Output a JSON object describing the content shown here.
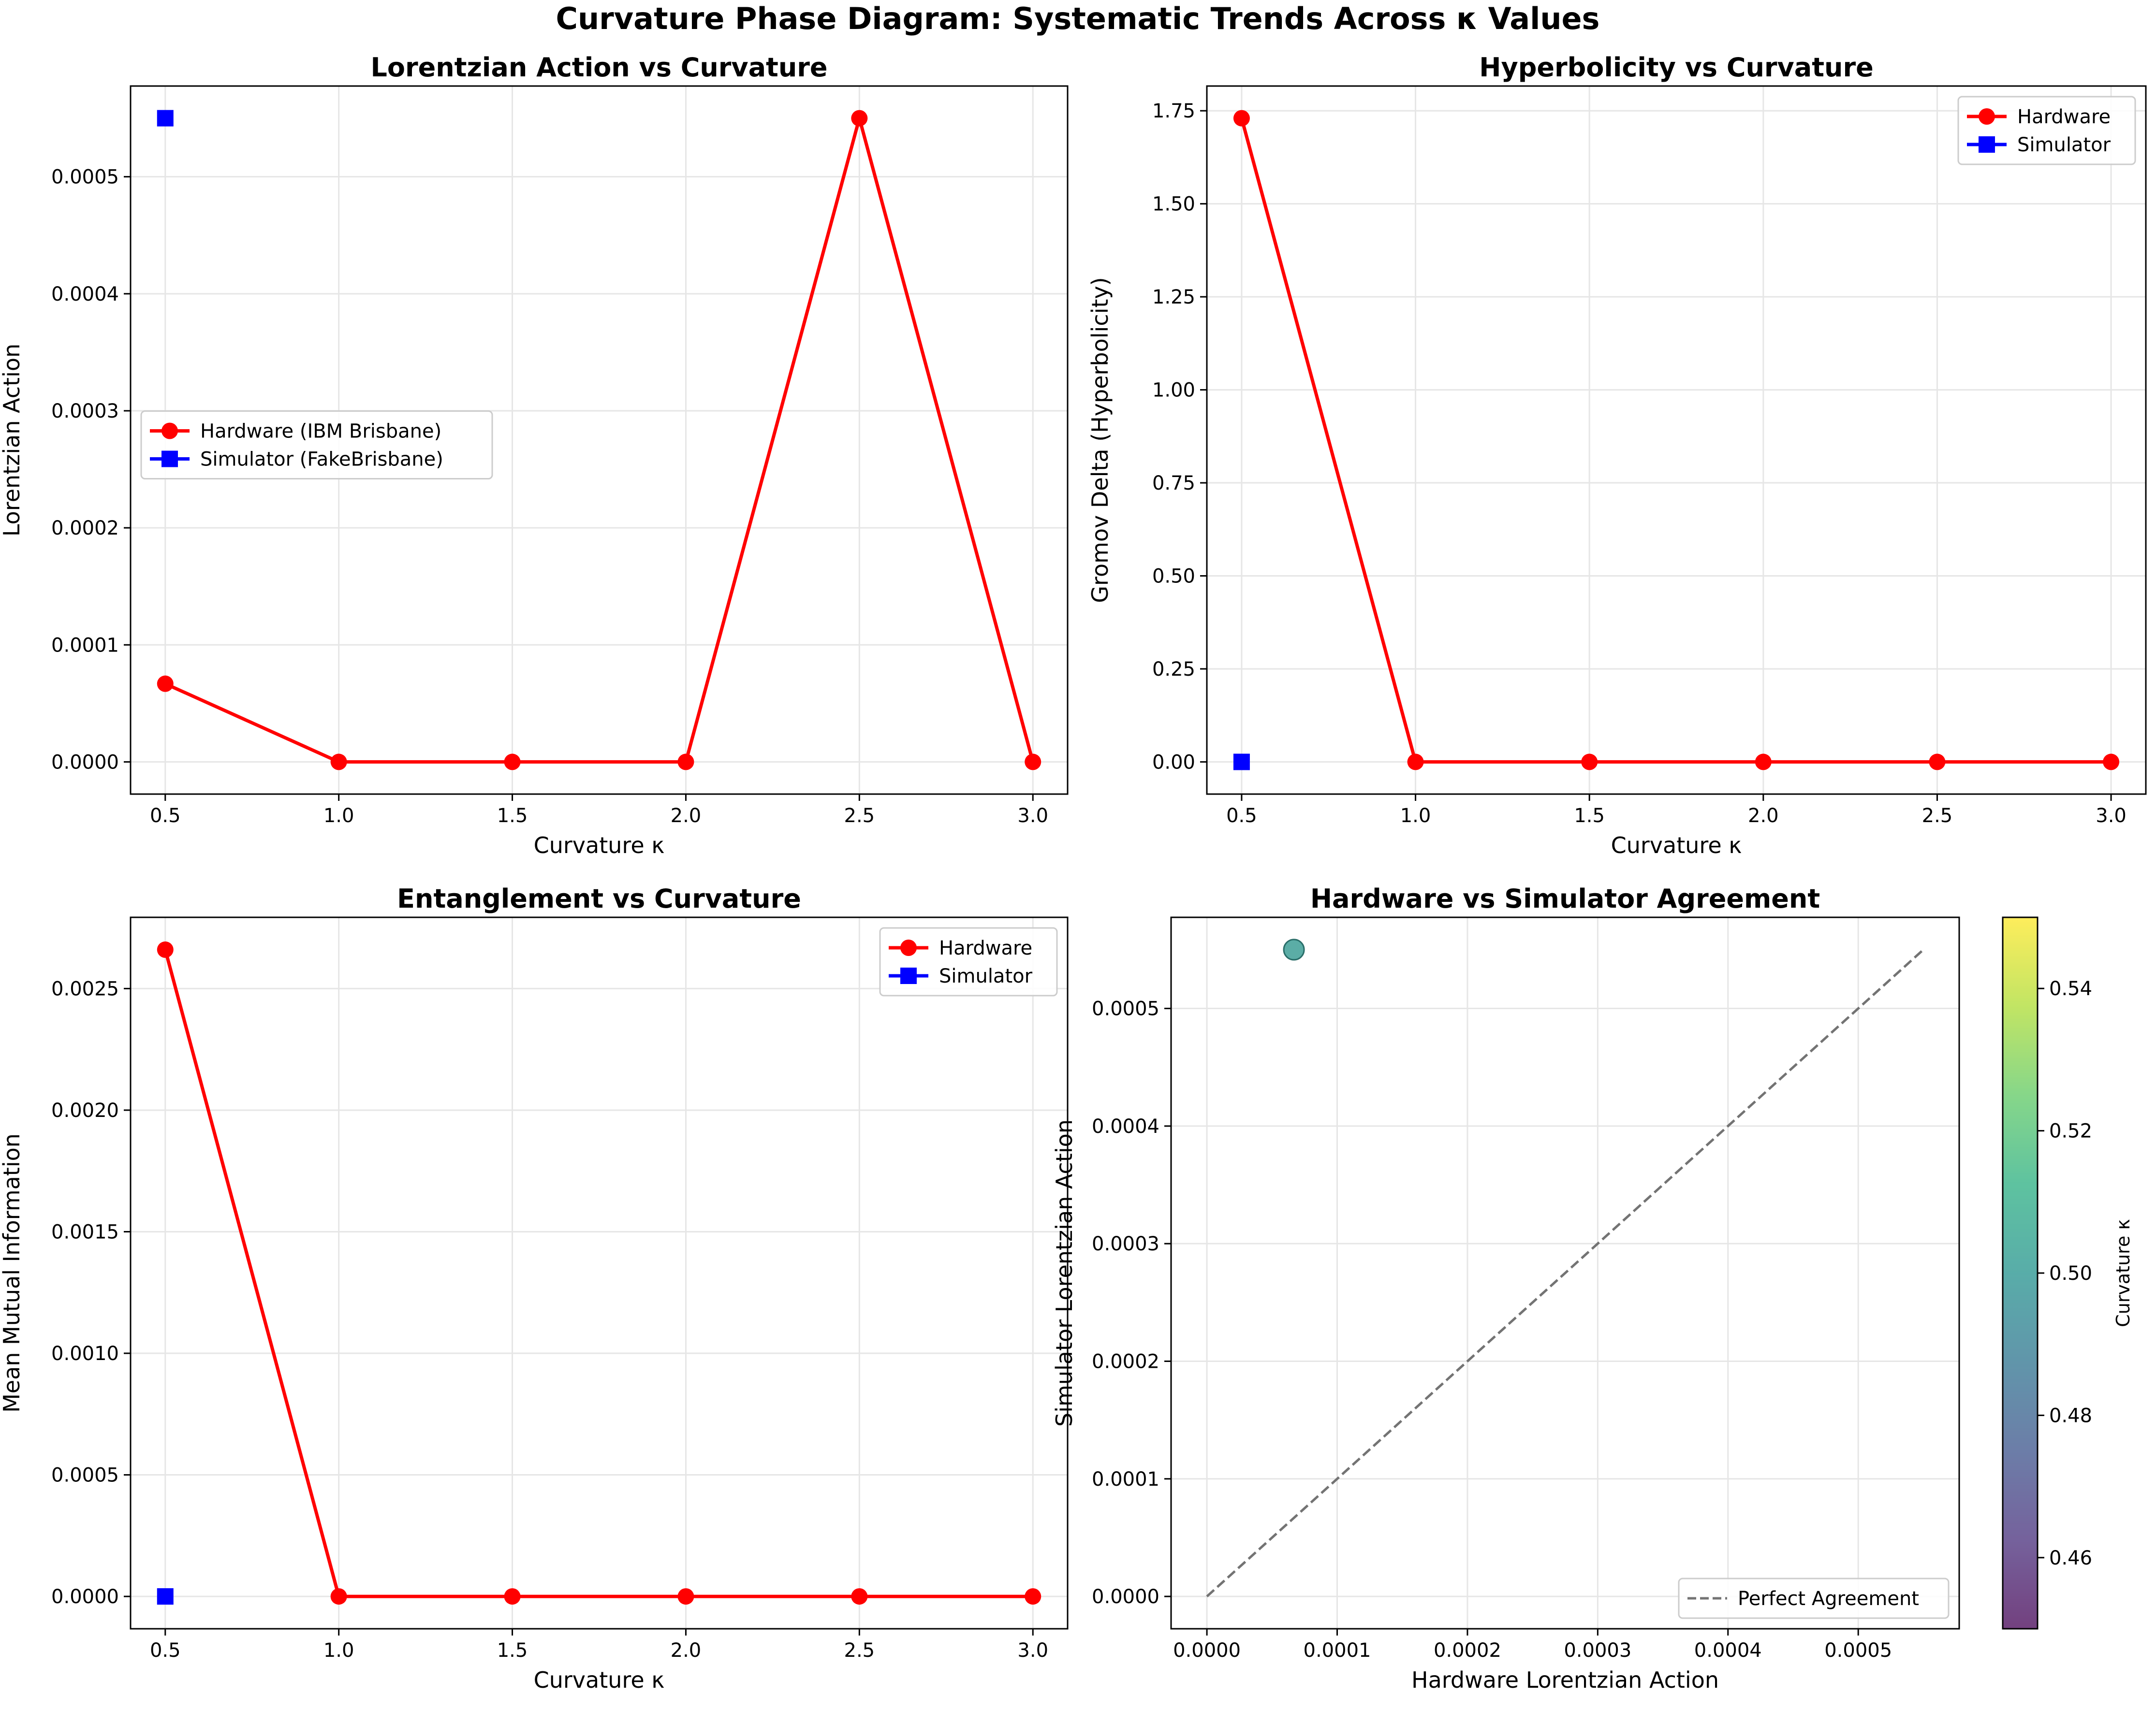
{
  "figure": {
    "title": "Curvature Phase Diagram: Systematic Trends Across κ Values"
  },
  "colors": {
    "hardware": "#ff0000",
    "simulator": "#0000ff",
    "agreement_line": "#737373",
    "grid": "#e6e6e6",
    "axes": "#000000"
  },
  "chart_data": [
    {
      "type": "line",
      "title": "Lorentzian Action vs Curvature",
      "xlabel": "Curvature κ",
      "ylabel": "Lorentzian Action",
      "xlim": [
        0.4,
        3.1
      ],
      "ylim": [
        -2.75e-05,
        0.0005775
      ],
      "xticks": [
        0.5,
        1.0,
        1.5,
        2.0,
        2.5,
        3.0
      ],
      "xtick_labels": [
        "0.5",
        "1.0",
        "1.5",
        "2.0",
        "2.5",
        "3.0"
      ],
      "yticks": [
        0,
        0.0001,
        0.0002,
        0.0003,
        0.0004,
        0.0005
      ],
      "ytick_labels": [
        "0.0000",
        "0.0001",
        "0.0002",
        "0.0003",
        "0.0004",
        "0.0005"
      ],
      "grid": true,
      "legend_position": "center-left",
      "series": [
        {
          "name": "Hardware (IBM Brisbane)",
          "marker": "circle",
          "x": [
            0.5,
            1.0,
            1.5,
            2.0,
            2.5,
            3.0
          ],
          "y": [
            6.68e-05,
            0,
            0,
            0,
            0.00055,
            0
          ]
        },
        {
          "name": "Simulator (FakeBrisbane)",
          "marker": "square",
          "x": [
            0.5
          ],
          "y": [
            0.00055
          ]
        }
      ]
    },
    {
      "type": "line",
      "title": "Hyperbolicity vs Curvature",
      "xlabel": "Curvature κ",
      "ylabel": "Gromov Delta (Hyperbolicity)",
      "xlim": [
        0.4,
        3.1
      ],
      "ylim": [
        -0.0865,
        1.8165
      ],
      "xticks": [
        0.5,
        1.0,
        1.5,
        2.0,
        2.5,
        3.0
      ],
      "xtick_labels": [
        "0.5",
        "1.0",
        "1.5",
        "2.0",
        "2.5",
        "3.0"
      ],
      "yticks": [
        0,
        0.25,
        0.5,
        0.75,
        1.0,
        1.25,
        1.5,
        1.75
      ],
      "ytick_labels": [
        "0.00",
        "0.25",
        "0.50",
        "0.75",
        "1.00",
        "1.25",
        "1.50",
        "1.75"
      ],
      "grid": true,
      "legend_position": "upper-right",
      "series": [
        {
          "name": "Hardware",
          "marker": "circle",
          "x": [
            0.5,
            1.0,
            1.5,
            2.0,
            2.5,
            3.0
          ],
          "y": [
            1.73,
            0,
            0,
            0,
            0,
            0
          ]
        },
        {
          "name": "Simulator",
          "marker": "square",
          "x": [
            0.5
          ],
          "y": [
            0
          ]
        }
      ]
    },
    {
      "type": "line",
      "title": "Entanglement vs Curvature",
      "xlabel": "Curvature κ",
      "ylabel": "Mean Mutual Information",
      "xlim": [
        0.4,
        3.1
      ],
      "ylim": [
        -0.000133,
        0.002793
      ],
      "xticks": [
        0.5,
        1.0,
        1.5,
        2.0,
        2.5,
        3.0
      ],
      "xtick_labels": [
        "0.5",
        "1.0",
        "1.5",
        "2.0",
        "2.5",
        "3.0"
      ],
      "yticks": [
        0,
        0.0005,
        0.001,
        0.0015,
        0.002,
        0.0025
      ],
      "ytick_labels": [
        "0.0000",
        "0.0005",
        "0.0010",
        "0.0015",
        "0.0020",
        "0.0025"
      ],
      "grid": true,
      "legend_position": "upper-right",
      "series": [
        {
          "name": "Hardware",
          "marker": "circle",
          "x": [
            0.5,
            1.0,
            1.5,
            2.0,
            2.5,
            3.0
          ],
          "y": [
            0.00266,
            0,
            0,
            0,
            0,
            0
          ]
        },
        {
          "name": "Simulator",
          "marker": "square",
          "x": [
            0.5
          ],
          "y": [
            0
          ]
        }
      ]
    },
    {
      "type": "scatter",
      "title": "Hardware vs Simulator Agreement",
      "xlabel": "Hardware Lorentzian Action",
      "ylabel": "Simulator Lorentzian Action",
      "xlim": [
        -2.75e-05,
        0.0005775
      ],
      "ylim": [
        -2.75e-05,
        0.0005775
      ],
      "xticks": [
        0,
        0.0001,
        0.0002,
        0.0003,
        0.0004,
        0.0005
      ],
      "xtick_labels": [
        "0.0000",
        "0.0001",
        "0.0002",
        "0.0003",
        "0.0004",
        "0.0005"
      ],
      "yticks": [
        0,
        0.0001,
        0.0002,
        0.0003,
        0.0004,
        0.0005
      ],
      "ytick_labels": [
        "0.0000",
        "0.0001",
        "0.0002",
        "0.0003",
        "0.0004",
        "0.0005"
      ],
      "grid": true,
      "legend_position": "lower-right",
      "points": [
        {
          "x": 6.68e-05,
          "y": 0.00055,
          "kappa": 0.5,
          "color": "#3e9f97"
        }
      ],
      "reference_line": {
        "name": "Perfect Agreement",
        "x": [
          0,
          0.00055
        ],
        "y": [
          0,
          0.00055
        ]
      },
      "colorbar": {
        "label": "Curvature κ",
        "range": [
          0.45,
          0.55
        ],
        "ticks": [
          0.46,
          0.48,
          0.5,
          0.52,
          0.54
        ],
        "tick_labels": [
          "0.46",
          "0.48",
          "0.50",
          "0.52",
          "0.54"
        ]
      }
    }
  ]
}
